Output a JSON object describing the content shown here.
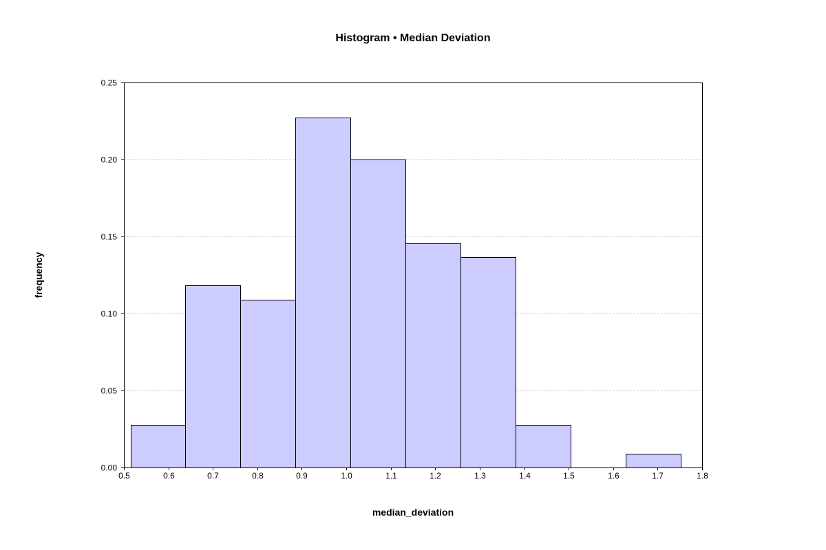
{
  "chart_data": {
    "type": "bar",
    "title": "Histogram • Median Deviation",
    "xlabel": "median_deviation",
    "ylabel": "frequency",
    "xlim": [
      0.5,
      1.8
    ],
    "ylim": [
      0,
      0.25
    ],
    "grid": true,
    "bar_color": "#ccccff",
    "bar_edge_color": "#000000",
    "grid_color": "#bdbdbd",
    "x_ticks": [
      "0.5",
      "0.6",
      "0.7",
      "0.8",
      "0.9",
      "1.0",
      "1.1",
      "1.2",
      "1.3",
      "1.4",
      "1.5",
      "1.6",
      "1.7",
      "1.8"
    ],
    "y_ticks": [
      "0.00",
      "0.05",
      "0.10",
      "0.15",
      "0.20",
      "0.25"
    ],
    "bins": [
      {
        "x0": 0.515,
        "x1": 0.638,
        "value": 0.0275
      },
      {
        "x0": 0.638,
        "x1": 0.762,
        "value": 0.1182
      },
      {
        "x0": 0.762,
        "x1": 0.886,
        "value": 0.1091
      },
      {
        "x0": 0.886,
        "x1": 1.009,
        "value": 0.2273
      },
      {
        "x0": 1.009,
        "x1": 1.133,
        "value": 0.2
      },
      {
        "x0": 1.133,
        "x1": 1.257,
        "value": 0.1455
      },
      {
        "x0": 1.257,
        "x1": 1.381,
        "value": 0.1364
      },
      {
        "x0": 1.381,
        "x1": 1.505,
        "value": 0.0275
      },
      {
        "x0": 1.505,
        "x1": 1.628,
        "value": 0.0
      },
      {
        "x0": 1.628,
        "x1": 1.752,
        "value": 0.0091
      }
    ]
  }
}
